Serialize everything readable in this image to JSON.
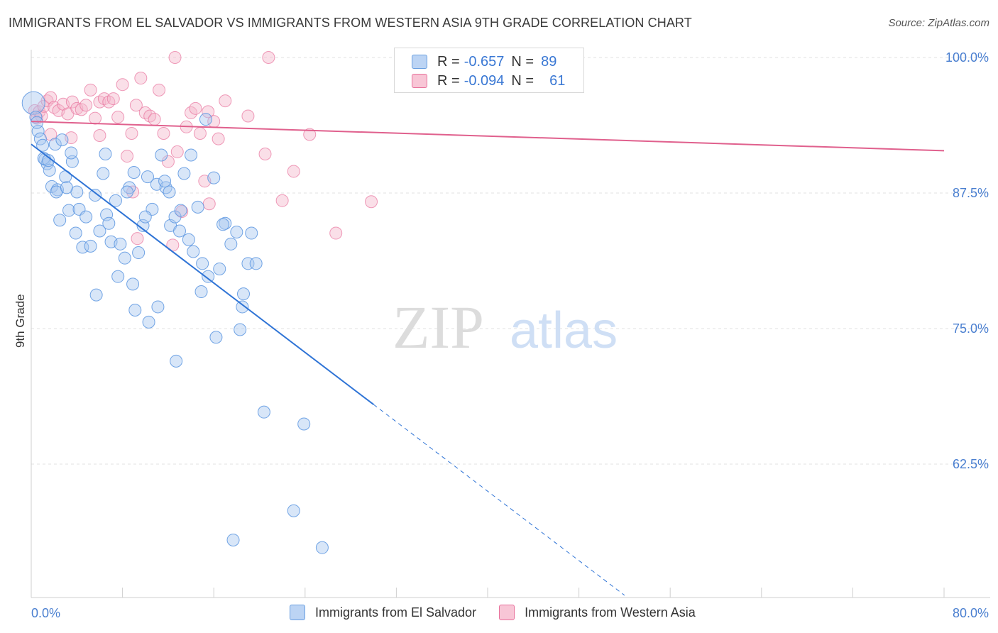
{
  "title": "IMMIGRANTS FROM EL SALVADOR VS IMMIGRANTS FROM WESTERN ASIA 9TH GRADE CORRELATION CHART",
  "source": "Source: ZipAtlas.com",
  "watermark": {
    "zip": "ZIP",
    "atlas": "atlas"
  },
  "colors": {
    "blue": "#5b95e0",
    "blue_fill": "#a9c8f0",
    "pink": "#e8729c",
    "pink_fill": "#f5b8cd",
    "axis_text": "#4a7fd0"
  },
  "legend": {
    "rows": [
      {
        "r_label": "R =",
        "r_value": "-0.657",
        "n_label": "N =",
        "n_value": "89"
      },
      {
        "r_label": "R =",
        "r_value": "-0.094",
        "n_label": "N =",
        "n_value": "61"
      }
    ]
  },
  "chart_data": {
    "type": "scatter",
    "ylabel": "9th Grade",
    "xlim": [
      0.0,
      80.0
    ],
    "ylim": [
      50.0,
      101.5
    ],
    "x_tick_labels": [
      "0.0%",
      "80.0%"
    ],
    "y_ticks": [
      62.5,
      75.0,
      87.5,
      100.0
    ],
    "y_tick_labels": [
      "62.5%",
      "75.0%",
      "87.5%",
      "100.0%"
    ],
    "grid": true,
    "legend_position": "top-center",
    "series": [
      {
        "name": "Immigrants from El Salvador",
        "color": "#5b95e0",
        "trend": {
          "x0": 0.0,
          "y0": 92.0,
          "x1": 30.0,
          "y1": 68.0,
          "dash_to_x": 52.0
        },
        "points": [
          [
            0.2,
            95.8
          ],
          [
            0.4,
            94.5
          ],
          [
            0.6,
            93.2
          ],
          [
            0.8,
            92.5
          ],
          [
            1.0,
            91.9
          ],
          [
            1.2,
            90.6
          ],
          [
            1.4,
            90.2
          ],
          [
            1.6,
            89.6
          ],
          [
            1.8,
            88.1
          ],
          [
            2.1,
            92.0
          ],
          [
            2.3,
            87.8
          ],
          [
            2.5,
            85.0
          ],
          [
            2.7,
            92.4
          ],
          [
            3.0,
            89.0
          ],
          [
            3.3,
            85.9
          ],
          [
            3.6,
            90.4
          ],
          [
            3.9,
            83.8
          ],
          [
            4.2,
            86.0
          ],
          [
            4.5,
            82.5
          ],
          [
            4.8,
            85.3
          ],
          [
            5.2,
            82.6
          ],
          [
            5.6,
            87.3
          ],
          [
            6.0,
            84.0
          ],
          [
            6.3,
            89.3
          ],
          [
            6.6,
            85.5
          ],
          [
            7.0,
            83.0
          ],
          [
            7.4,
            86.8
          ],
          [
            7.8,
            82.8
          ],
          [
            8.2,
            81.5
          ],
          [
            8.6,
            88.0
          ],
          [
            9.0,
            89.4
          ],
          [
            9.4,
            82.0
          ],
          [
            9.8,
            84.5
          ],
          [
            10.2,
            89.0
          ],
          [
            10.6,
            86.0
          ],
          [
            11.0,
            88.3
          ],
          [
            11.4,
            91.0
          ],
          [
            11.8,
            88.0
          ],
          [
            12.2,
            84.5
          ],
          [
            12.6,
            85.3
          ],
          [
            13.0,
            84.0
          ],
          [
            13.4,
            89.3
          ],
          [
            13.8,
            83.2
          ],
          [
            14.2,
            82.1
          ],
          [
            14.6,
            86.2
          ],
          [
            15.0,
            81.0
          ],
          [
            15.5,
            79.8
          ],
          [
            16.0,
            88.9
          ],
          [
            16.5,
            80.5
          ],
          [
            17.0,
            84.7
          ],
          [
            17.5,
            82.8
          ],
          [
            18.0,
            83.9
          ],
          [
            18.5,
            77.0
          ],
          [
            19.0,
            81.0
          ],
          [
            5.7,
            78.1
          ],
          [
            7.6,
            79.8
          ],
          [
            9.1,
            76.7
          ],
          [
            10.3,
            75.6
          ],
          [
            11.1,
            77.0
          ],
          [
            12.7,
            72.0
          ],
          [
            14.9,
            78.4
          ],
          [
            16.2,
            74.2
          ],
          [
            18.3,
            74.9
          ],
          [
            18.6,
            78.2
          ],
          [
            19.7,
            81.0
          ],
          [
            20.4,
            67.3
          ],
          [
            23.9,
            66.2
          ],
          [
            23.0,
            58.2
          ],
          [
            17.7,
            55.5
          ],
          [
            25.5,
            54.8
          ],
          [
            1.1,
            90.7
          ],
          [
            2.2,
            87.6
          ],
          [
            3.5,
            91.2
          ],
          [
            4.0,
            87.6
          ],
          [
            6.8,
            84.7
          ],
          [
            8.4,
            87.6
          ],
          [
            10.0,
            85.3
          ],
          [
            12.1,
            87.6
          ],
          [
            13.1,
            85.9
          ],
          [
            15.3,
            94.3
          ],
          [
            19.3,
            83.8
          ],
          [
            6.5,
            91.1
          ],
          [
            8.9,
            79.1
          ],
          [
            11.7,
            88.6
          ],
          [
            14.0,
            91.0
          ],
          [
            16.8,
            84.6
          ],
          [
            0.5,
            94.0
          ],
          [
            1.5,
            90.5
          ],
          [
            3.1,
            88.0
          ]
        ]
      },
      {
        "name": "Immigrants from Western Asia",
        "color": "#e8729c",
        "trend": {
          "x0": 0.0,
          "y0": 94.1,
          "x1": 80.0,
          "y1": 91.4
        },
        "points": [
          [
            0.3,
            95.1
          ],
          [
            0.5,
            94.4
          ],
          [
            0.7,
            95.0
          ],
          [
            0.9,
            94.6
          ],
          [
            1.1,
            95.5
          ],
          [
            1.4,
            96.0
          ],
          [
            1.7,
            96.3
          ],
          [
            2.0,
            95.4
          ],
          [
            2.4,
            95.1
          ],
          [
            2.8,
            95.7
          ],
          [
            3.2,
            94.8
          ],
          [
            3.6,
            95.9
          ],
          [
            4.0,
            95.3
          ],
          [
            4.4,
            95.2
          ],
          [
            4.8,
            95.6
          ],
          [
            5.2,
            97.0
          ],
          [
            5.6,
            94.4
          ],
          [
            6.0,
            95.9
          ],
          [
            6.4,
            96.2
          ],
          [
            6.8,
            95.9
          ],
          [
            7.2,
            96.2
          ],
          [
            7.6,
            94.5
          ],
          [
            8.0,
            97.5
          ],
          [
            8.4,
            90.9
          ],
          [
            8.8,
            93.0
          ],
          [
            9.2,
            95.6
          ],
          [
            9.6,
            98.1
          ],
          [
            10.0,
            94.9
          ],
          [
            10.4,
            94.6
          ],
          [
            10.8,
            94.3
          ],
          [
            11.2,
            97.0
          ],
          [
            11.6,
            93.0
          ],
          [
            12.0,
            90.4
          ],
          [
            12.4,
            82.7
          ],
          [
            12.8,
            91.3
          ],
          [
            13.2,
            85.8
          ],
          [
            13.6,
            93.6
          ],
          [
            14.0,
            94.9
          ],
          [
            14.4,
            95.3
          ],
          [
            14.8,
            93.0
          ],
          [
            15.2,
            88.6
          ],
          [
            15.6,
            86.5
          ],
          [
            16.0,
            94.1
          ],
          [
            16.4,
            92.5
          ],
          [
            17.0,
            96.0
          ],
          [
            19.0,
            94.6
          ],
          [
            20.5,
            91.1
          ],
          [
            22.0,
            86.8
          ],
          [
            23.0,
            89.5
          ],
          [
            24.4,
            92.9
          ],
          [
            26.7,
            83.8
          ],
          [
            29.8,
            86.7
          ],
          [
            12.6,
            100.0
          ],
          [
            20.8,
            100.0
          ],
          [
            42.6,
            100.0
          ],
          [
            6.0,
            92.8
          ],
          [
            3.5,
            92.6
          ],
          [
            9.3,
            83.3
          ],
          [
            8.9,
            87.6
          ],
          [
            1.7,
            92.9
          ],
          [
            15.5,
            95.0
          ]
        ]
      }
    ]
  }
}
